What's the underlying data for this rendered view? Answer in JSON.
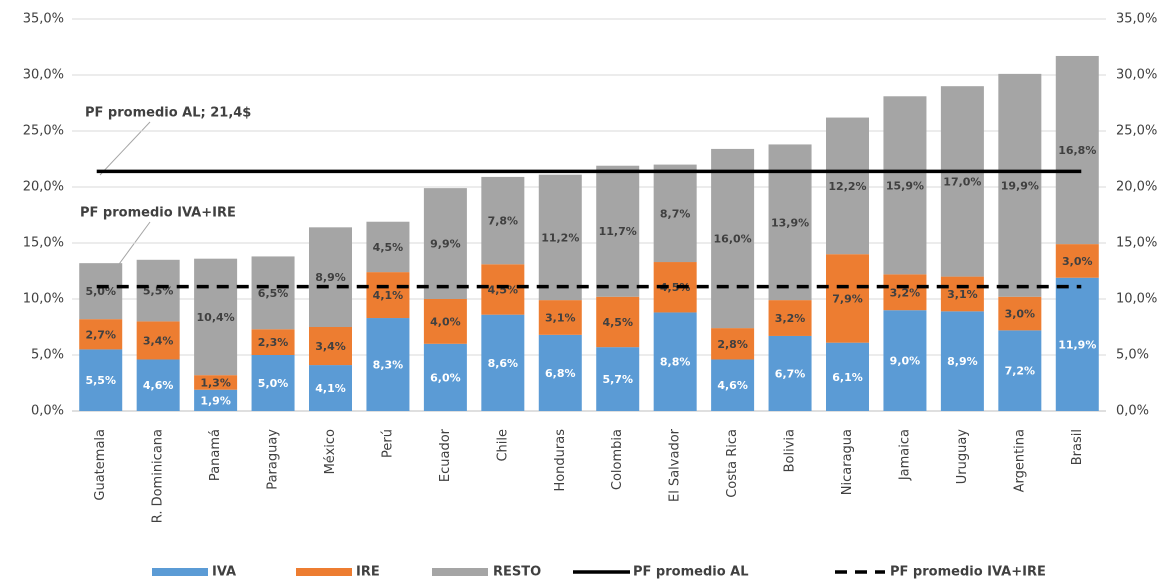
{
  "chart_data": {
    "type": "stacked-bar",
    "categories": [
      "Guatemala",
      "R. Dominicana",
      "Panamá",
      "Paraguay",
      "México",
      "Perú",
      "Ecuador",
      "Chile",
      "Honduras",
      "Colombia",
      "El Salvador",
      "Costa Rica",
      "Bolivia",
      "Nicaragua",
      "Jamaica",
      "Uruguay",
      "Argentina",
      "Brasil"
    ],
    "series": [
      {
        "name": "IVA",
        "color": "#5b9bd5",
        "label_color": "#ffffff",
        "values": [
          5.5,
          4.6,
          1.9,
          5.0,
          4.1,
          8.3,
          6.0,
          8.6,
          6.8,
          5.7,
          8.8,
          4.6,
          6.7,
          6.1,
          9.0,
          8.9,
          7.2,
          11.9
        ],
        "value_labels": [
          "5,5%",
          "4,6%",
          "1,9%",
          "5,0%",
          "4,1%",
          "8,3%",
          "6,0%",
          "8,6%",
          "6,8%",
          "5,7%",
          "8,8%",
          "4,6%",
          "6,7%",
          "6,1%",
          "9,0%",
          "8,9%",
          "7,2%",
          "11,9%"
        ]
      },
      {
        "name": "IRE",
        "color": "#ed7d31",
        "label_color": "#404040",
        "values": [
          2.7,
          3.4,
          1.3,
          2.3,
          3.4,
          4.1,
          4.0,
          4.5,
          3.1,
          4.5,
          4.5,
          2.8,
          3.2,
          7.9,
          3.2,
          3.1,
          3.0,
          3.0
        ],
        "value_labels": [
          "2,7%",
          "3,4%",
          "1,3%",
          "2,3%",
          "3,4%",
          "4,1%",
          "4,0%",
          "4,5%",
          "3,1%",
          "4,5%",
          "4,5%",
          "2,8%",
          "3,2%",
          "7,9%",
          "3,2%",
          "3,1%",
          "3,0%",
          "3,0%"
        ]
      },
      {
        "name": "RESTO",
        "color": "#a5a5a5",
        "label_color": "#404040",
        "values": [
          5.0,
          5.5,
          10.4,
          6.5,
          8.9,
          4.5,
          9.9,
          7.8,
          11.2,
          11.7,
          8.7,
          16.0,
          13.9,
          12.2,
          15.9,
          17.0,
          19.9,
          16.8
        ],
        "value_labels": [
          "5,0%",
          "5,5%",
          "10,4%",
          "6,5%",
          "8,9%",
          "4,5%",
          "9,9%",
          "7,8%",
          "11,2%",
          "11,7%",
          "8,7%",
          "16,0%",
          "13,9%",
          "12,2%",
          "15,9%",
          "17,0%",
          "19,9%",
          "16,8%"
        ]
      }
    ],
    "lines": [
      {
        "name": "PF promedio AL",
        "value": 21.4,
        "color": "#000000",
        "dashed": false
      },
      {
        "name": "PF promedio IVA+IRE",
        "value": 11.1,
        "color": "#000000",
        "dashed": true
      }
    ],
    "annotations": [
      "PF promedio AL; 21,4$",
      "PF promedio IVA+IRE"
    ],
    "ylim": [
      0,
      35
    ],
    "yticks": [
      {
        "value": 0,
        "label": "0,0%"
      },
      {
        "value": 5,
        "label": "5,0%"
      },
      {
        "value": 10,
        "label": "10,0%"
      },
      {
        "value": 15,
        "label": "15,0%"
      },
      {
        "value": 20,
        "label": "20,0%"
      },
      {
        "value": 25,
        "label": "25,0%"
      },
      {
        "value": 30,
        "label": "30,0%"
      },
      {
        "value": 35,
        "label": "35,0%"
      }
    ],
    "grid": true
  }
}
